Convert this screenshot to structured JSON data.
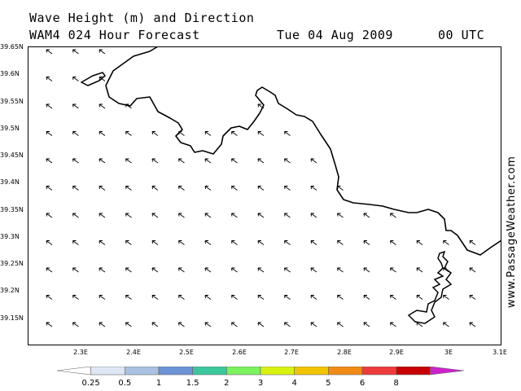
{
  "header": {
    "line1": "Wave Height (m) and Direction",
    "line2": "WAM4 024 Hour Forecast",
    "date": "Tue 04 Aug 2009",
    "time": "00 UTC"
  },
  "watermark": "www.PassageWeather.com",
  "map": {
    "lat_labels": [
      "39.65N",
      "39.6N",
      "39.55N",
      "39.5N",
      "39.45N",
      "39.4N",
      "39.35N",
      "39.3N",
      "39.25N",
      "39.2N",
      "39.15N"
    ],
    "lon_labels": [
      "2.3E",
      "2.4E",
      "2.5E",
      "2.6E",
      "2.7E",
      "2.8E",
      "2.9E",
      "3E",
      "3.1E"
    ],
    "wave_direction": "to north-west",
    "land_color": "#ffffff",
    "zone_colors": {
      "0-0.25": "#ffffff",
      "0.25-0.5": "#dfe7f6",
      "0.5-1": "#a9c1e2"
    }
  },
  "legend": {
    "levels": [
      "0.25",
      "0.5",
      "1",
      "1.5",
      "2",
      "3",
      "4",
      "5",
      "6",
      "8"
    ],
    "colors": [
      "#ffffff",
      "#dfe7f6",
      "#a9c1e2",
      "#6b93d6",
      "#3dc79c",
      "#7cf25f",
      "#d8f20f",
      "#f2c400",
      "#f28a16",
      "#ee3b3b",
      "#c80000",
      "#cc22cc"
    ]
  }
}
